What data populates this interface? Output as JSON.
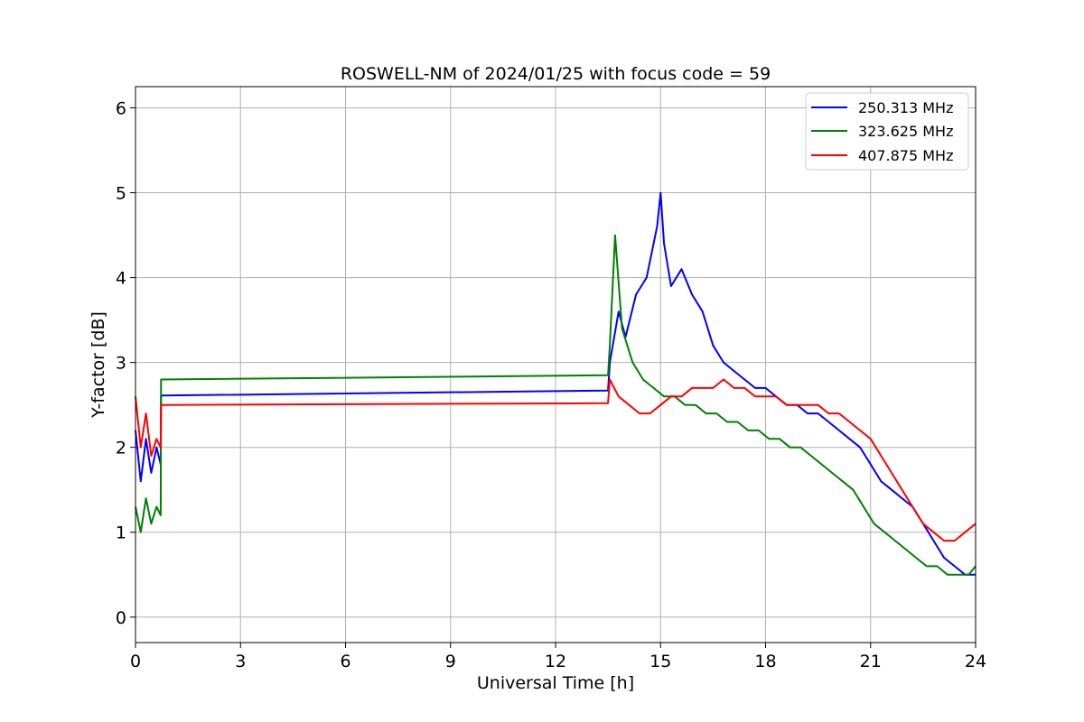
{
  "chart_data": {
    "type": "line",
    "title": "ROSWELL-NM of 2024/01/25 with focus code = 59",
    "xlabel": "Universal Time [h]",
    "ylabel": "Y-factor [dB]",
    "xlim": [
      0,
      24
    ],
    "ylim": [
      -0.3,
      6.25
    ],
    "xticks": [
      0,
      3,
      6,
      9,
      12,
      15,
      18,
      21,
      24
    ],
    "xtick_labels": [
      "0",
      "3",
      "6",
      "9",
      "12",
      "15",
      "18",
      "21",
      "24"
    ],
    "yticks": [
      0,
      1,
      2,
      3,
      4,
      5,
      6
    ],
    "ytick_labels": [
      "0",
      "1",
      "2",
      "3",
      "4",
      "5",
      "6"
    ],
    "grid": true,
    "legend_position": "top-right",
    "series": [
      {
        "name": "250.313 MHz",
        "color": "#0000ff",
        "x": [
          0.0,
          0.15,
          0.3,
          0.45,
          0.6,
          0.72,
          0.73,
          13.5,
          13.55,
          13.8,
          14.0,
          14.3,
          14.6,
          14.9,
          15.0,
          15.1,
          15.3,
          15.6,
          15.9,
          16.2,
          16.5,
          16.8,
          17.1,
          17.4,
          17.7,
          18.0,
          18.3,
          18.6,
          18.9,
          19.2,
          19.5,
          19.8,
          20.1,
          20.4,
          20.7,
          21.0,
          21.3,
          21.6,
          21.9,
          22.2,
          22.5,
          22.8,
          23.1,
          23.4,
          23.7,
          24.0
        ],
        "y": [
          2.2,
          1.6,
          2.1,
          1.7,
          2.0,
          1.8,
          2.61,
          2.67,
          3.0,
          3.6,
          3.3,
          3.8,
          4.0,
          4.6,
          5.0,
          4.4,
          3.9,
          4.1,
          3.8,
          3.6,
          3.2,
          3.0,
          2.9,
          2.8,
          2.7,
          2.7,
          2.6,
          2.5,
          2.5,
          2.4,
          2.4,
          2.3,
          2.2,
          2.1,
          2.0,
          1.8,
          1.6,
          1.5,
          1.4,
          1.3,
          1.1,
          0.9,
          0.7,
          0.6,
          0.5,
          0.5
        ]
      },
      {
        "name": "323.625 MHz",
        "color": "#008000",
        "x": [
          0.0,
          0.15,
          0.3,
          0.45,
          0.6,
          0.72,
          0.73,
          13.5,
          13.55,
          13.7,
          13.9,
          14.2,
          14.5,
          14.8,
          15.1,
          15.4,
          15.7,
          16.0,
          16.3,
          16.6,
          16.9,
          17.2,
          17.5,
          17.8,
          18.1,
          18.4,
          18.7,
          19.0,
          19.3,
          19.6,
          19.9,
          20.2,
          20.5,
          20.8,
          21.1,
          21.4,
          21.7,
          22.0,
          22.3,
          22.6,
          22.9,
          23.2,
          23.5,
          23.8,
          24.0
        ],
        "y": [
          1.3,
          1.0,
          1.4,
          1.1,
          1.3,
          1.2,
          2.8,
          2.85,
          3.2,
          4.5,
          3.4,
          3.0,
          2.8,
          2.7,
          2.6,
          2.6,
          2.5,
          2.5,
          2.4,
          2.4,
          2.3,
          2.3,
          2.2,
          2.2,
          2.1,
          2.1,
          2.0,
          2.0,
          1.9,
          1.8,
          1.7,
          1.6,
          1.5,
          1.3,
          1.1,
          1.0,
          0.9,
          0.8,
          0.7,
          0.6,
          0.6,
          0.5,
          0.5,
          0.5,
          0.6
        ]
      },
      {
        "name": "407.875 MHz",
        "color": "#ff0000",
        "x": [
          0.0,
          0.15,
          0.3,
          0.45,
          0.6,
          0.72,
          0.73,
          13.5,
          13.55,
          13.8,
          14.1,
          14.4,
          14.7,
          15.0,
          15.3,
          15.6,
          15.9,
          16.2,
          16.5,
          16.8,
          17.1,
          17.4,
          17.7,
          18.0,
          18.3,
          18.6,
          18.9,
          19.2,
          19.5,
          19.8,
          20.1,
          20.4,
          20.7,
          21.0,
          21.3,
          21.6,
          21.9,
          22.2,
          22.5,
          22.8,
          23.1,
          23.4,
          23.7,
          24.0
        ],
        "y": [
          2.6,
          2.0,
          2.4,
          1.9,
          2.1,
          2.0,
          2.5,
          2.52,
          2.8,
          2.6,
          2.5,
          2.4,
          2.4,
          2.5,
          2.6,
          2.6,
          2.7,
          2.7,
          2.7,
          2.8,
          2.7,
          2.7,
          2.6,
          2.6,
          2.6,
          2.5,
          2.5,
          2.5,
          2.5,
          2.4,
          2.4,
          2.3,
          2.2,
          2.1,
          1.9,
          1.7,
          1.5,
          1.3,
          1.1,
          1.0,
          0.9,
          0.9,
          1.0,
          1.1
        ]
      }
    ]
  }
}
